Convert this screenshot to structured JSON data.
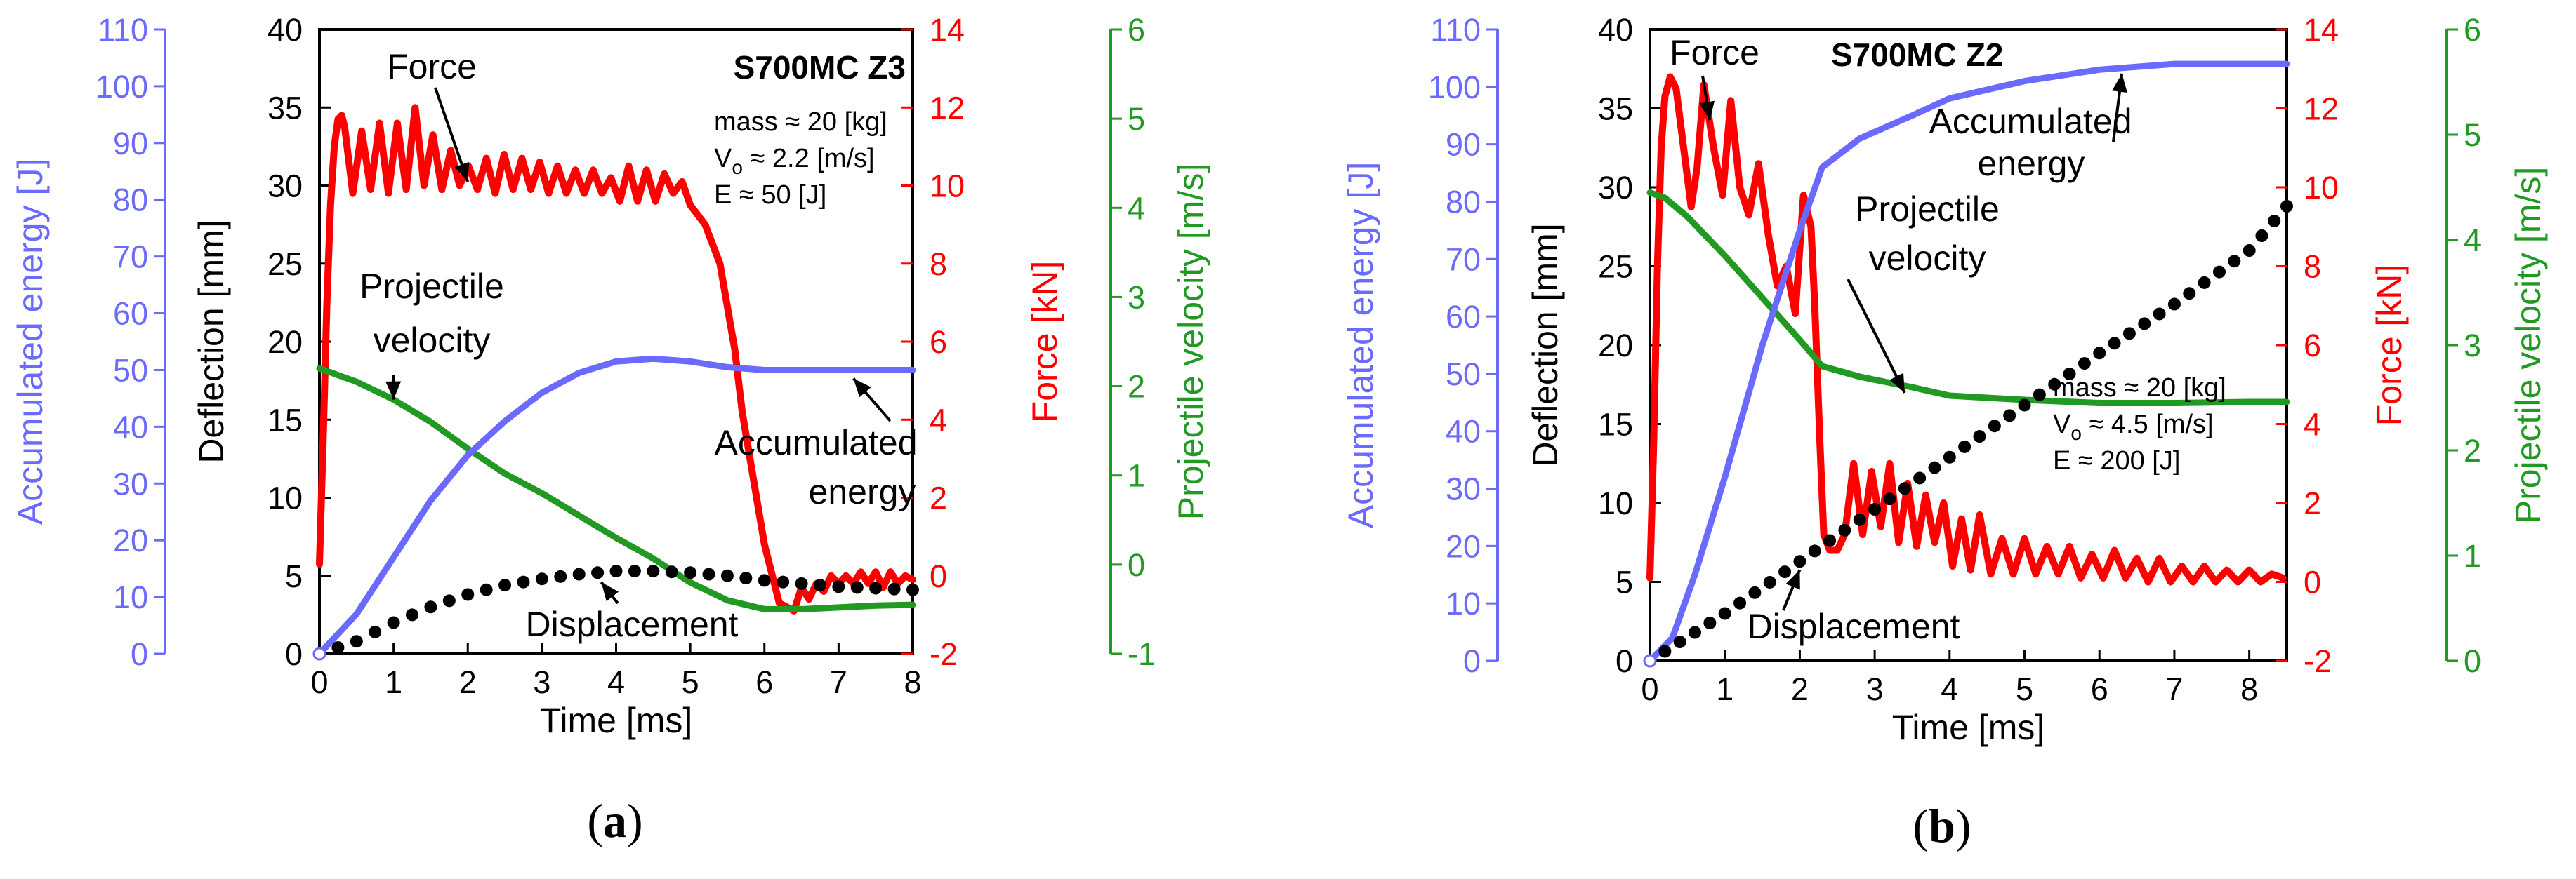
{
  "colors": {
    "energy": "#6a6aff",
    "force": "#ff0000",
    "velocity": "#229922",
    "displacement": "#000000",
    "axis": "#000000"
  },
  "chart_data": [
    {
      "type": "line",
      "panel": "a",
      "caption": "(a)",
      "caption_letter": "a",
      "title": "S700MC Z3",
      "info": [
        "mass ≈ 20 [kg]",
        "V",
        "o",
        " ≈ 2.2 [m/s]",
        "E ≈ 50 [J]"
      ],
      "xlabel": "Time [ms]",
      "xlim": [
        0,
        8
      ],
      "xticks": [
        "0",
        "1",
        "2",
        "3",
        "4",
        "5",
        "6",
        "7",
        "8"
      ],
      "axes": {
        "deflection": {
          "label": "Deflection [mm]",
          "lim": [
            0,
            40
          ],
          "ticks": [
            "0",
            "5",
            "10",
            "15",
            "20",
            "25",
            "30",
            "35",
            "40"
          ]
        },
        "energy": {
          "label": "Accumulated energy [J]",
          "lim": [
            0,
            110
          ],
          "ticks": [
            "0",
            "10",
            "20",
            "30",
            "40",
            "50",
            "60",
            "70",
            "80",
            "90",
            "100",
            "110"
          ]
        },
        "force": {
          "label": "Force [kN]",
          "lim": [
            -2,
            14
          ],
          "ticks": [
            "-2",
            "0",
            "2",
            "4",
            "6",
            "8",
            "10",
            "12",
            "14"
          ]
        },
        "velocity": {
          "label": "Projectile velocity [m/s]",
          "lim": [
            -1,
            6
          ],
          "ticks": [
            "-1",
            "0",
            "1",
            "2",
            "3",
            "4",
            "5",
            "6"
          ]
        }
      },
      "annotations": [
        "Force",
        "Projectile",
        "velocity",
        "Accumulated",
        "energy",
        "Displacement"
      ],
      "series": [
        {
          "name": "Force",
          "axis": "force",
          "x": [
            0,
            0.05,
            0.1,
            0.15,
            0.2,
            0.25,
            0.3,
            0.34,
            0.45,
            0.57,
            0.69,
            0.81,
            0.93,
            1.05,
            1.17,
            1.29,
            1.41,
            1.53,
            1.65,
            1.77,
            1.89,
            2.01,
            2.13,
            2.25,
            2.37,
            2.49,
            2.61,
            2.73,
            2.85,
            2.97,
            3.09,
            3.21,
            3.33,
            3.45,
            3.57,
            3.69,
            3.81,
            3.93,
            4.05,
            4.17,
            4.29,
            4.41,
            4.53,
            4.65,
            4.77,
            4.89,
            5.0,
            5.2,
            5.4,
            5.6,
            5.7,
            5.85,
            6.0,
            6.2,
            6.4,
            6.5,
            6.6,
            6.7,
            6.8,
            6.9,
            7.0,
            7.1,
            7.2,
            7.3,
            7.4,
            7.5,
            7.6,
            7.7,
            7.8,
            7.9,
            8.0
          ],
          "values": [
            0.3,
            3.5,
            7,
            9.5,
            11,
            11.7,
            11.8,
            11.5,
            9.8,
            11.4,
            9.9,
            11.6,
            9.8,
            11.6,
            9.9,
            12.0,
            10.0,
            11.3,
            9.9,
            10.9,
            10.0,
            10.5,
            9.9,
            10.7,
            9.8,
            10.8,
            9.9,
            10.7,
            9.9,
            10.6,
            9.8,
            10.5,
            9.8,
            10.4,
            9.8,
            10.4,
            9.8,
            10.2,
            9.6,
            10.5,
            9.6,
            10.4,
            9.6,
            10.3,
            9.8,
            10.1,
            9.5,
            9.0,
            8.0,
            5.8,
            4.2,
            2.5,
            0.8,
            -0.7,
            -0.9,
            -0.3,
            -0.6,
            -0.2,
            -0.4,
            0.0,
            -0.2,
            0.0,
            -0.2,
            0.1,
            -0.2,
            0.1,
            -0.3,
            0.1,
            -0.2,
            0.0,
            -0.1
          ]
        },
        {
          "name": "Projectile velocity",
          "axis": "velocity",
          "x": [
            0,
            0.5,
            1,
            1.5,
            2,
            2.5,
            3,
            3.5,
            4,
            4.5,
            5,
            5.5,
            6,
            6.5,
            7,
            7.5,
            8
          ],
          "values": [
            2.2,
            2.05,
            1.85,
            1.6,
            1.3,
            1.02,
            0.8,
            0.55,
            0.3,
            0.07,
            -0.2,
            -0.4,
            -0.5,
            -0.5,
            -0.48,
            -0.46,
            -0.45
          ]
        },
        {
          "name": "Accumulated energy",
          "axis": "energy",
          "x": [
            0,
            0.5,
            1,
            1.5,
            2,
            2.5,
            3,
            3.5,
            4,
            4.5,
            5,
            5.5,
            6,
            6.5,
            7,
            7.5,
            8
          ],
          "values": [
            0,
            7,
            17,
            27,
            35,
            41,
            46,
            49.5,
            51.5,
            52,
            51.5,
            50.5,
            50,
            50,
            50,
            50,
            50
          ]
        },
        {
          "name": "Displacement",
          "axis": "deflection",
          "x": [
            0,
            0.5,
            1,
            1.5,
            2,
            2.5,
            3,
            3.5,
            4,
            4.5,
            5,
            5.5,
            6,
            6.5,
            7,
            7.5,
            8
          ],
          "values": [
            0,
            0.8,
            2.0,
            3.0,
            3.8,
            4.4,
            4.8,
            5.1,
            5.3,
            5.3,
            5.2,
            5.0,
            4.7,
            4.5,
            4.3,
            4.2,
            4.1
          ]
        }
      ]
    },
    {
      "type": "line",
      "panel": "b",
      "caption": "(b)",
      "caption_letter": "b",
      "title": "S700MC Z2",
      "info": [
        "mass ≈ 20 [kg]",
        "V",
        "o",
        " ≈ 4.5 [m/s]",
        "E ≈ 200 [J]"
      ],
      "xlabel": "Time [ms]",
      "xlim": [
        0,
        8.5
      ],
      "xticks": [
        "0",
        "1",
        "2",
        "3",
        "4",
        "5",
        "6",
        "7",
        "8"
      ],
      "axes": {
        "deflection": {
          "label": "Deflection [mm]",
          "lim": [
            0,
            40
          ],
          "ticks": [
            "0",
            "5",
            "10",
            "15",
            "20",
            "25",
            "30",
            "35",
            "40"
          ]
        },
        "energy": {
          "label": "Accumulated energy [J]",
          "lim": [
            0,
            110
          ],
          "ticks": [
            "0",
            "10",
            "20",
            "30",
            "40",
            "50",
            "60",
            "70",
            "80",
            "90",
            "100",
            "110"
          ]
        },
        "force": {
          "label": "Force [kN]",
          "lim": [
            -2,
            14
          ],
          "ticks": [
            "-2",
            "0",
            "2",
            "4",
            "6",
            "8",
            "10",
            "12",
            "14"
          ]
        },
        "velocity": {
          "label": "Projectile velocity [m/s]",
          "lim": [
            0,
            6
          ],
          "ticks": [
            "0",
            "1",
            "2",
            "3",
            "4",
            "5",
            "6"
          ]
        }
      },
      "annotations": [
        "Force",
        "Accumulated",
        "energy",
        "Projectile",
        "velocity",
        "Displacement"
      ],
      "series": [
        {
          "name": "Force",
          "axis": "force",
          "x": [
            0,
            0.05,
            0.1,
            0.15,
            0.2,
            0.27,
            0.35,
            0.45,
            0.55,
            0.63,
            0.72,
            0.85,
            0.97,
            1.08,
            1.2,
            1.32,
            1.45,
            1.58,
            1.7,
            1.82,
            1.94,
            2.05,
            2.15,
            2.2,
            2.27,
            2.32,
            2.4,
            2.5,
            2.6,
            2.72,
            2.84,
            2.96,
            3.08,
            3.2,
            3.32,
            3.44,
            3.56,
            3.68,
            3.8,
            3.92,
            4.04,
            4.16,
            4.28,
            4.4,
            4.55,
            4.7,
            4.85,
            5.0,
            5.15,
            5.3,
            5.45,
            5.6,
            5.75,
            5.9,
            6.05,
            6.2,
            6.35,
            6.5,
            6.65,
            6.8,
            6.95,
            7.1,
            7.25,
            7.4,
            7.55,
            7.7,
            7.85,
            8.0,
            8.15,
            8.3,
            8.45
          ],
          "values": [
            0.1,
            3.5,
            8,
            11,
            12.3,
            12.8,
            12.5,
            11.0,
            9.5,
            10.5,
            12.6,
            11.0,
            9.8,
            12.2,
            10.0,
            9.3,
            10.6,
            8.8,
            7.5,
            8.0,
            6.8,
            9.8,
            9.0,
            7.0,
            3.5,
            1.2,
            0.8,
            0.8,
            1.2,
            3.0,
            1.2,
            2.8,
            1.4,
            3.0,
            1.0,
            2.5,
            0.9,
            2.2,
            1.0,
            2.0,
            0.4,
            1.6,
            0.3,
            1.7,
            0.2,
            1.1,
            0.2,
            1.1,
            0.2,
            0.9,
            0.2,
            0.9,
            0.1,
            0.7,
            0.1,
            0.8,
            0.1,
            0.6,
            0.0,
            0.6,
            0.0,
            0.4,
            0.0,
            0.4,
            0.0,
            0.3,
            0.0,
            0.3,
            0.0,
            0.2,
            0.1
          ]
        },
        {
          "name": "Projectile velocity",
          "axis": "velocity",
          "x": [
            0,
            0.2,
            0.5,
            1,
            1.5,
            2,
            2.3,
            2.8,
            3.5,
            4,
            5,
            6,
            7,
            8,
            8.5
          ],
          "values": [
            4.45,
            4.4,
            4.22,
            3.85,
            3.45,
            3.05,
            2.8,
            2.7,
            2.6,
            2.52,
            2.48,
            2.45,
            2.45,
            2.46,
            2.46
          ]
        },
        {
          "name": "Accumulated energy",
          "axis": "energy",
          "x": [
            0,
            0.3,
            0.6,
            1,
            1.5,
            2,
            2.3,
            2.8,
            3.5,
            4,
            5,
            6,
            7,
            8,
            8.5
          ],
          "values": [
            0,
            4,
            15,
            32,
            55,
            75,
            86,
            91,
            95,
            98,
            101,
            103,
            104,
            104,
            104
          ]
        },
        {
          "name": "Displacement",
          "axis": "deflection",
          "x": [
            0,
            1,
            2,
            3,
            4,
            5,
            6,
            7,
            8,
            8.5
          ],
          "values": [
            0,
            3,
            6.3,
            9.6,
            12.9,
            16.2,
            19.5,
            22.6,
            26.0,
            28.8
          ]
        }
      ]
    }
  ]
}
